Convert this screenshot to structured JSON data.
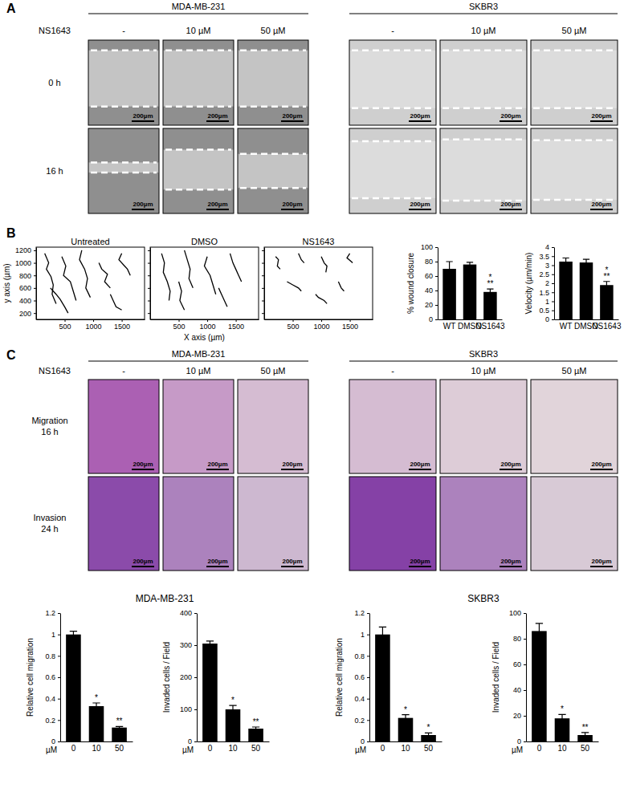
{
  "panels": {
    "A": {
      "label": "A",
      "cell_lines": [
        "MDA-MB-231",
        "SKBR3"
      ],
      "treatment": "NS1643",
      "doses": [
        "-",
        "10 µM",
        "50 µM"
      ],
      "rows": [
        "0 h",
        "16 h"
      ],
      "scale_bar": "200µm"
    },
    "B": {
      "label": "B"
    },
    "C": {
      "label": "C",
      "cell_lines": [
        "MDA-MB-231",
        "SKBR3"
      ],
      "treatment": "NS1643",
      "doses": [
        "-",
        "10 µM",
        "50 µM"
      ],
      "rows": [
        [
          "Migration",
          "16 h"
        ],
        [
          "Invasion",
          "24 h"
        ]
      ],
      "scale_bar": "200µm",
      "chart_titles": [
        "MDA-MB-231",
        "SKBR3"
      ]
    }
  },
  "chart_data": [
    {
      "type": "line",
      "title": "Untreated",
      "ylabel": "y axis (µm)",
      "xlim": [
        0,
        1900
      ],
      "ylim": [
        100,
        1250
      ],
      "xticks": [
        500,
        1000,
        1500
      ],
      "yticks": [
        200,
        400,
        600,
        800,
        1000,
        1200
      ],
      "color": "#000000",
      "series": [
        {
          "x": [
            150,
            220,
            180,
            260,
            300,
            280,
            350
          ],
          "values": [
            1150,
            1000,
            900,
            780,
            650,
            500,
            350
          ]
        },
        {
          "x": [
            450,
            520,
            480,
            600,
            650,
            700
          ],
          "values": [
            1100,
            950,
            800,
            700,
            550,
            400
          ]
        },
        {
          "x": [
            800,
            760,
            850,
            900,
            870,
            950
          ],
          "values": [
            1200,
            1050,
            900,
            750,
            600,
            450
          ]
        },
        {
          "x": [
            1100,
            1150,
            1250,
            1200,
            1300
          ],
          "values": [
            1000,
            900,
            820,
            700,
            600
          ]
        },
        {
          "x": [
            1500,
            1450,
            1550,
            1600,
            1650
          ],
          "values": [
            1150,
            1050,
            950,
            900,
            800
          ]
        },
        {
          "x": [
            250,
            350,
            420,
            500,
            560
          ],
          "values": [
            600,
            500,
            420,
            300,
            200
          ]
        },
        {
          "x": [
            1300,
            1350,
            1400,
            1500
          ],
          "values": [
            500,
            400,
            300,
            250
          ]
        }
      ]
    },
    {
      "type": "line",
      "title": "DMSO",
      "xlabel": "X axis (µm)",
      "tick_labels": "x",
      "xlim": [
        0,
        1900
      ],
      "ylim": [
        100,
        1250
      ],
      "xticks": [
        500,
        1000,
        1500
      ],
      "yticks": [
        200,
        400,
        600,
        800,
        1000,
        1200
      ],
      "color": "#000000",
      "series": [
        {
          "x": [
            200,
            250,
            230,
            300,
            350,
            330
          ],
          "values": [
            1150,
            1000,
            850,
            700,
            550,
            400
          ]
        },
        {
          "x": [
            600,
            650,
            700,
            680,
            750
          ],
          "values": [
            1200,
            1050,
            900,
            750,
            600
          ]
        },
        {
          "x": [
            1000,
            950,
            1050,
            1100,
            1150
          ],
          "values": [
            1100,
            950,
            800,
            650,
            500
          ]
        },
        {
          "x": [
            1400,
            1450,
            1500,
            1550,
            1600
          ],
          "values": [
            1150,
            1000,
            900,
            800,
            700
          ]
        },
        {
          "x": [
            500,
            550,
            520,
            600
          ],
          "values": [
            700,
            550,
            400,
            250
          ]
        },
        {
          "x": [
            1200,
            1250,
            1300,
            1350
          ],
          "values": [
            600,
            500,
            400,
            300
          ]
        }
      ]
    },
    {
      "type": "line",
      "title": "NS1643",
      "tick_labels": "x",
      "xlim": [
        0,
        1900
      ],
      "ylim": [
        100,
        1250
      ],
      "xticks": [
        500,
        1000,
        1500
      ],
      "yticks": [
        200,
        400,
        600,
        800,
        1000,
        1200
      ],
      "color": "#000000",
      "series": [
        {
          "x": [
            200,
            250,
            230,
            280
          ],
          "values": [
            1100,
            1050,
            950,
            900
          ]
        },
        {
          "x": [
            600,
            650,
            700
          ],
          "values": [
            1150,
            1050,
            1000
          ]
        },
        {
          "x": [
            1000,
            1050,
            1100,
            1080
          ],
          "values": [
            1100,
            1000,
            950,
            850
          ]
        },
        {
          "x": [
            1500,
            1450,
            1550
          ],
          "values": [
            1150,
            1080,
            1000
          ]
        },
        {
          "x": [
            400,
            500,
            600,
            650
          ],
          "values": [
            700,
            650,
            600,
            550
          ]
        },
        {
          "x": [
            900,
            950,
            1050,
            1100
          ],
          "values": [
            500,
            450,
            400,
            350
          ]
        },
        {
          "x": [
            1300,
            1350,
            1400
          ],
          "values": [
            700,
            600,
            550
          ]
        }
      ]
    },
    {
      "type": "bar",
      "ylabel": "% wound closure",
      "categories": [
        "WT",
        "DMSO",
        "NS1643"
      ],
      "values": [
        70,
        76,
        38
      ],
      "errors": [
        10,
        3,
        4
      ],
      "significance": [
        null,
        null,
        [
          "*",
          "**"
        ]
      ],
      "color": "#000000",
      "ylim": [
        0,
        100
      ],
      "yticks": [
        0,
        20,
        40,
        60,
        80,
        100
      ]
    },
    {
      "type": "bar",
      "ylabel": "Velocity (µm/min)",
      "categories": [
        "WT",
        "DMSO",
        "NS1643"
      ],
      "values": [
        3.2,
        3.15,
        1.9
      ],
      "errors": [
        0.2,
        0.18,
        0.2
      ],
      "significance": [
        null,
        null,
        [
          "*",
          "**"
        ]
      ],
      "color": "#000000",
      "ylim": [
        0,
        4
      ],
      "yticks": [
        0,
        0.5,
        1,
        1.5,
        2,
        2.5,
        3,
        3.5,
        4
      ]
    },
    {
      "type": "bar",
      "ylabel": "Relative cell migration",
      "xlabel": "µM",
      "categories": [
        "0",
        "10",
        "50"
      ],
      "values": [
        1,
        0.33,
        0.13
      ],
      "errors": [
        0.03,
        0.03,
        0.01
      ],
      "significance": [
        null,
        [
          "*"
        ],
        [
          "**"
        ]
      ],
      "color": "#000000",
      "ylim": [
        0,
        1.2
      ],
      "yticks": [
        0,
        0.2,
        0.4,
        0.6,
        0.8,
        1,
        1.2
      ]
    },
    {
      "type": "bar",
      "ylabel": "Invaded cells / Field",
      "xlabel": "µM",
      "categories": [
        "0",
        "10",
        "50"
      ],
      "values": [
        305,
        100,
        40
      ],
      "errors": [
        8,
        12,
        5
      ],
      "significance": [
        null,
        [
          "*"
        ],
        [
          "**"
        ]
      ],
      "color": "#000000",
      "ylim": [
        0,
        400
      ],
      "yticks": [
        0,
        100,
        200,
        300,
        400
      ]
    },
    {
      "type": "bar",
      "ylabel": "Relative cell migration",
      "xlabel": "µM",
      "categories": [
        "0",
        "10",
        "50"
      ],
      "values": [
        1,
        0.22,
        0.06
      ],
      "errors": [
        0.07,
        0.03,
        0.02
      ],
      "significance": [
        null,
        [
          "*"
        ],
        [
          "*"
        ]
      ],
      "color": "#000000",
      "ylim": [
        0,
        1.2
      ],
      "yticks": [
        0,
        0.2,
        0.4,
        0.6,
        0.8,
        1,
        1.2
      ]
    },
    {
      "type": "bar",
      "ylabel": "Invaded cells / Field",
      "xlabel": "µM",
      "categories": [
        "0",
        "10",
        "50"
      ],
      "values": [
        86,
        18,
        5
      ],
      "errors": [
        6,
        3,
        2
      ],
      "significance": [
        null,
        [
          "*"
        ],
        [
          "**"
        ]
      ],
      "color": "#000000",
      "ylim": [
        0,
        100
      ],
      "yticks": [
        0,
        20,
        40,
        60,
        80,
        100
      ]
    }
  ]
}
